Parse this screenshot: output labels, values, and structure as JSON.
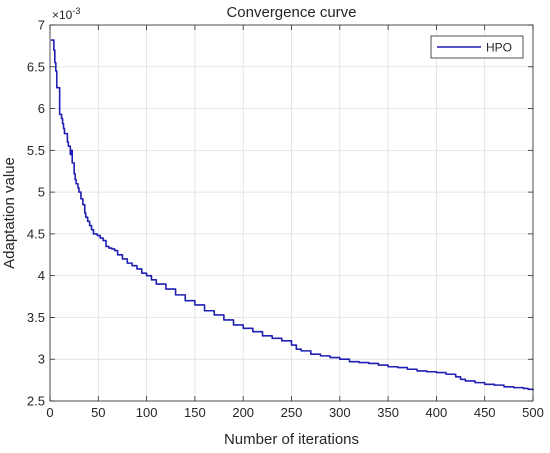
{
  "chart_data": {
    "type": "line",
    "title": "Convergence curve",
    "xlabel": "Number of iterations",
    "ylabel": "Adaptation value",
    "y_exponent_label": "×10",
    "y_exponent_power": "-3",
    "xlim": [
      0,
      500
    ],
    "ylim": [
      2.5,
      7
    ],
    "xticks": [
      0,
      50,
      100,
      150,
      200,
      250,
      300,
      350,
      400,
      450,
      500
    ],
    "yticks": [
      2.5,
      3,
      3.5,
      4,
      4.5,
      5,
      5.5,
      6,
      6.5,
      7
    ],
    "ytick_labels": [
      "2.5",
      "3",
      "3.5",
      "4",
      "4.5",
      "5",
      "5.5",
      "6",
      "6.5",
      "7"
    ],
    "grid": true,
    "legend_position": "top-right",
    "series": [
      {
        "name": "HPO",
        "color": "#1f1fb4",
        "x": [
          1,
          3,
          4,
          5,
          6,
          7,
          8,
          10,
          11,
          12,
          13,
          14,
          15,
          18,
          19,
          21,
          22,
          23,
          25,
          26,
          27,
          29,
          30,
          32,
          34,
          36,
          37,
          39,
          41,
          43,
          45,
          47,
          49,
          52,
          55,
          58,
          61,
          64,
          67,
          70,
          75,
          80,
          85,
          90,
          95,
          100,
          105,
          110,
          120,
          130,
          140,
          150,
          160,
          170,
          180,
          190,
          200,
          210,
          220,
          230,
          240,
          250,
          255,
          260,
          270,
          280,
          290,
          300,
          310,
          320,
          330,
          340,
          350,
          360,
          370,
          380,
          390,
          400,
          410,
          420,
          425,
          430,
          440,
          450,
          460,
          470,
          480,
          490,
          495,
          500
        ],
        "y": [
          6.82,
          6.82,
          6.7,
          6.55,
          6.45,
          6.25,
          6.25,
          5.93,
          5.93,
          5.88,
          5.82,
          5.76,
          5.7,
          5.6,
          5.55,
          5.45,
          5.5,
          5.35,
          5.22,
          5.15,
          5.1,
          5.05,
          5.0,
          4.92,
          4.85,
          4.75,
          4.7,
          4.65,
          4.6,
          4.55,
          4.5,
          4.5,
          4.48,
          4.45,
          4.42,
          4.35,
          4.33,
          4.32,
          4.3,
          4.25,
          4.2,
          4.15,
          4.12,
          4.08,
          4.03,
          4.0,
          3.95,
          3.9,
          3.84,
          3.77,
          3.7,
          3.65,
          3.58,
          3.53,
          3.47,
          3.41,
          3.37,
          3.33,
          3.28,
          3.25,
          3.22,
          3.17,
          3.12,
          3.1,
          3.06,
          3.04,
          3.02,
          3.0,
          2.97,
          2.96,
          2.95,
          2.93,
          2.91,
          2.9,
          2.88,
          2.86,
          2.85,
          2.84,
          2.82,
          2.79,
          2.76,
          2.74,
          2.72,
          2.7,
          2.69,
          2.67,
          2.66,
          2.65,
          2.64,
          2.63
        ]
      }
    ]
  }
}
